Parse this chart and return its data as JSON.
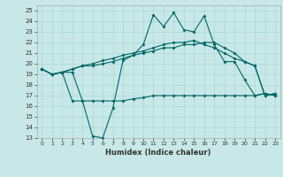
{
  "title": "",
  "xlabel": "Humidex (Indice chaleur)",
  "background_color": "#c8e8e8",
  "line_color": "#006666",
  "grid_color": "#b0d8d8",
  "xlim": [
    -0.5,
    23.5
  ],
  "ylim": [
    13,
    25.5
  ],
  "yticks": [
    13,
    14,
    15,
    16,
    17,
    18,
    19,
    20,
    21,
    22,
    23,
    24,
    25
  ],
  "xticks": [
    0,
    1,
    2,
    3,
    4,
    5,
    6,
    7,
    8,
    9,
    10,
    11,
    12,
    13,
    14,
    15,
    16,
    17,
    18,
    19,
    20,
    21,
    22,
    23
  ],
  "series": [
    {
      "x": [
        0,
        1,
        2,
        3,
        4,
        5,
        6,
        7,
        8,
        9,
        10,
        11,
        12,
        13,
        14,
        15,
        16,
        17,
        18,
        19,
        20,
        21,
        22,
        23
      ],
      "y": [
        19.5,
        19.0,
        19.2,
        19.2,
        16.5,
        13.2,
        13.0,
        15.8,
        20.3,
        20.8,
        21.8,
        24.6,
        23.5,
        24.8,
        23.2,
        23.0,
        24.5,
        21.8,
        20.2,
        20.2,
        18.5,
        17.0,
        17.2,
        17.0
      ]
    },
    {
      "x": [
        0,
        1,
        2,
        3,
        4,
        5,
        6,
        7,
        8,
        9,
        10,
        11,
        12,
        13,
        14,
        15,
        16,
        17,
        18,
        19,
        20,
        21,
        22,
        23
      ],
      "y": [
        19.5,
        19.0,
        19.2,
        19.5,
        19.8,
        20.0,
        20.3,
        20.5,
        20.8,
        21.0,
        21.2,
        21.5,
        21.8,
        22.0,
        22.0,
        22.2,
        21.8,
        21.5,
        21.0,
        20.5,
        20.2,
        19.8,
        17.0,
        17.2
      ]
    },
    {
      "x": [
        0,
        1,
        2,
        3,
        4,
        5,
        6,
        7,
        8,
        9,
        10,
        11,
        12,
        13,
        14,
        15,
        16,
        17,
        18,
        19,
        20,
        21,
        22,
        23
      ],
      "y": [
        19.5,
        19.0,
        19.2,
        19.5,
        19.8,
        19.8,
        20.0,
        20.2,
        20.5,
        20.8,
        21.0,
        21.2,
        21.5,
        21.5,
        21.8,
        21.8,
        22.0,
        22.0,
        21.5,
        21.0,
        20.2,
        19.8,
        17.0,
        17.2
      ]
    },
    {
      "x": [
        0,
        1,
        2,
        3,
        4,
        5,
        6,
        7,
        8,
        9,
        10,
        11,
        12,
        13,
        14,
        15,
        16,
        17,
        18,
        19,
        20,
        21,
        22,
        23
      ],
      "y": [
        19.5,
        19.0,
        19.2,
        16.5,
        16.5,
        16.5,
        16.5,
        16.5,
        16.5,
        16.7,
        16.8,
        17.0,
        17.0,
        17.0,
        17.0,
        17.0,
        17.0,
        17.0,
        17.0,
        17.0,
        17.0,
        17.0,
        17.2,
        17.0
      ]
    }
  ]
}
